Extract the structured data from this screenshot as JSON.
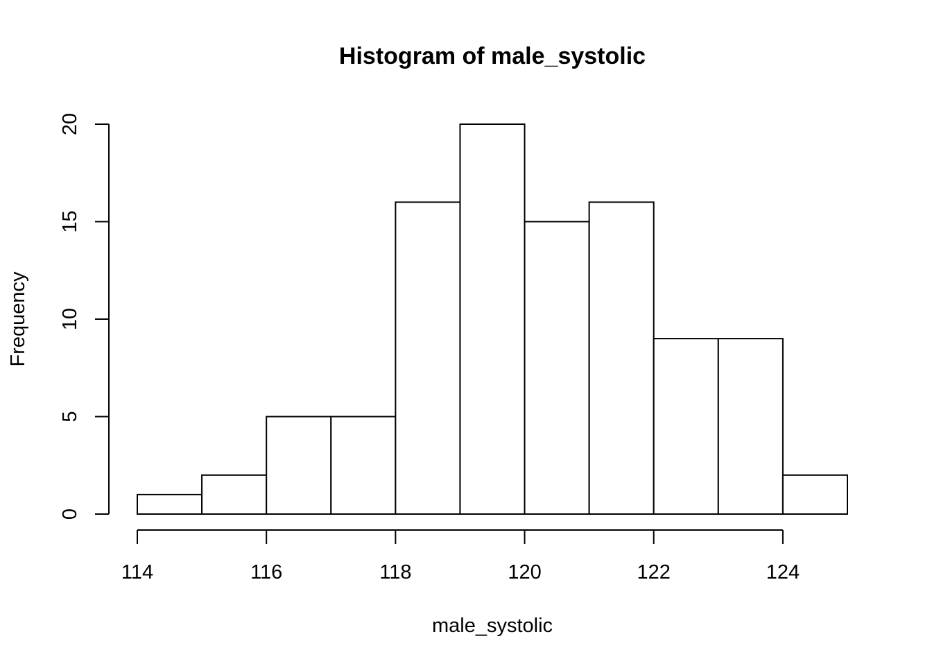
{
  "chart_data": {
    "type": "bar",
    "title": "Histogram of male_systolic",
    "xlabel": "male_systolic",
    "ylabel": "Frequency",
    "bin_edges": [
      114,
      115,
      116,
      117,
      118,
      119,
      120,
      121,
      122,
      123,
      124,
      125
    ],
    "values": [
      1,
      2,
      5,
      5,
      16,
      20,
      15,
      16,
      9,
      9,
      2
    ],
    "xlim": [
      114,
      125
    ],
    "ylim": [
      0,
      20
    ],
    "x_ticks": [
      114,
      116,
      118,
      120,
      122,
      124
    ],
    "y_ticks": [
      0,
      5,
      10,
      15,
      20
    ],
    "grid": false,
    "legend": "none",
    "bar_fill": "#ffffff",
    "bar_stroke": "#000000"
  }
}
